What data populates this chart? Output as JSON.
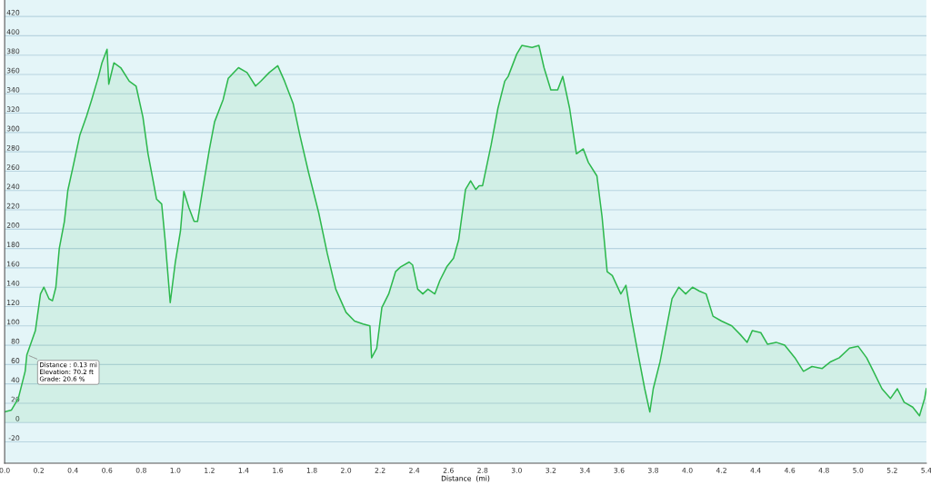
{
  "chart_data": {
    "type": "area",
    "xlabel": "Distance  (mi)",
    "x": [
      0,
      0.04,
      0.08,
      0.12,
      0.13,
      0.18,
      0.21,
      0.23,
      0.26,
      0.28,
      0.3,
      0.32,
      0.35,
      0.37,
      0.4,
      0.44,
      0.48,
      0.51,
      0.55,
      0.57,
      0.6,
      0.61,
      0.64,
      0.68,
      0.73,
      0.77,
      0.81,
      0.84,
      0.87,
      0.89,
      0.92,
      0.94,
      0.97,
      1.0,
      1.03,
      1.05,
      1.08,
      1.11,
      1.13,
      1.16,
      1.2,
      1.23,
      1.28,
      1.31,
      1.37,
      1.42,
      1.47,
      1.5,
      1.55,
      1.6,
      1.64,
      1.69,
      1.73,
      1.78,
      1.84,
      1.89,
      1.94,
      2.0,
      2.05,
      2.1,
      2.14,
      2.15,
      2.18,
      2.21,
      2.25,
      2.29,
      2.32,
      2.37,
      2.39,
      2.42,
      2.45,
      2.48,
      2.52,
      2.55,
      2.59,
      2.63,
      2.66,
      2.7,
      2.73,
      2.76,
      2.78,
      2.8,
      2.85,
      2.89,
      2.93,
      2.95,
      3.0,
      3.03,
      3.09,
      3.13,
      3.16,
      3.2,
      3.24,
      3.27,
      3.31,
      3.35,
      3.39,
      3.42,
      3.47,
      3.5,
      3.53,
      3.56,
      3.61,
      3.64,
      3.67,
      3.71,
      3.75,
      3.78,
      3.8,
      3.84,
      3.87,
      3.91,
      3.95,
      3.99,
      4.03,
      4.07,
      4.11,
      4.15,
      4.2,
      4.26,
      4.31,
      4.35,
      4.38,
      4.43,
      4.47,
      4.52,
      4.57,
      4.63,
      4.68,
      4.73,
      4.79,
      4.84,
      4.89,
      4.95,
      5.0,
      5.05,
      5.09,
      5.14,
      5.19,
      5.23,
      5.27,
      5.32,
      5.36,
      5.39,
      5.4
    ],
    "series": [
      {
        "color": "#2db84d",
        "values": [
          11,
          13,
          25,
          53,
          70,
          95,
          133,
          140,
          128,
          126,
          140,
          180,
          208,
          240,
          264,
          297,
          317,
          334,
          358,
          372,
          386,
          350,
          372,
          367,
          353,
          348,
          316,
          278,
          250,
          231,
          226,
          189,
          124,
          166,
          198,
          239,
          222,
          208,
          208,
          241,
          283,
          311,
          334,
          356,
          367,
          362,
          348,
          353,
          362,
          369,
          353,
          330,
          297,
          259,
          217,
          175,
          138,
          114,
          105,
          102,
          100,
          67,
          77,
          119,
          133,
          156,
          161,
          166,
          163,
          138,
          133,
          138,
          133,
          147,
          161,
          170,
          189,
          241,
          250,
          241,
          245,
          245,
          287,
          325,
          353,
          358,
          381,
          390,
          388,
          390,
          367,
          344,
          344,
          358,
          325,
          278,
          283,
          269,
          255,
          213,
          156,
          152,
          133,
          142,
          110,
          72,
          35,
          11,
          35,
          63,
          91,
          128,
          140,
          133,
          140,
          136,
          133,
          110,
          105,
          100,
          91,
          83,
          95,
          93,
          81,
          83,
          80,
          67,
          53,
          58,
          56,
          63,
          67,
          77,
          79,
          67,
          53,
          35,
          25,
          35,
          21,
          16,
          7,
          25,
          35
        ]
      }
    ],
    "xlim": [
      0,
      5.4
    ],
    "ylim": [
      -42,
      437
    ],
    "xticks": [
      {
        "value": 0,
        "label": "0.0"
      },
      0.2,
      0.4,
      0.6,
      0.8,
      {
        "value": 1,
        "label": "1.0"
      },
      1.2,
      1.4,
      1.6,
      1.8,
      {
        "value": 2,
        "label": "2.0"
      },
      2.2,
      2.4,
      2.6,
      2.8,
      {
        "value": 3,
        "label": "3.0"
      },
      3.2,
      3.4,
      3.6,
      3.8,
      {
        "value": 4,
        "label": "4.0"
      },
      4.2,
      4.4,
      4.6,
      4.8,
      {
        "value": 5,
        "label": "5.0"
      },
      5.2,
      5.4
    ],
    "yticks": [
      -20,
      0,
      20,
      40,
      60,
      80,
      100,
      120,
      140,
      160,
      180,
      200,
      220,
      240,
      260,
      280,
      300,
      320,
      340,
      360,
      380,
      400,
      420
    ],
    "grid": "y",
    "annotations": [
      {
        "text": "Distance : 0.13 mi\nElevation: 70.2 ft\nGrade: 20.6 %",
        "x": 0.13,
        "y": 70.2
      }
    ]
  }
}
